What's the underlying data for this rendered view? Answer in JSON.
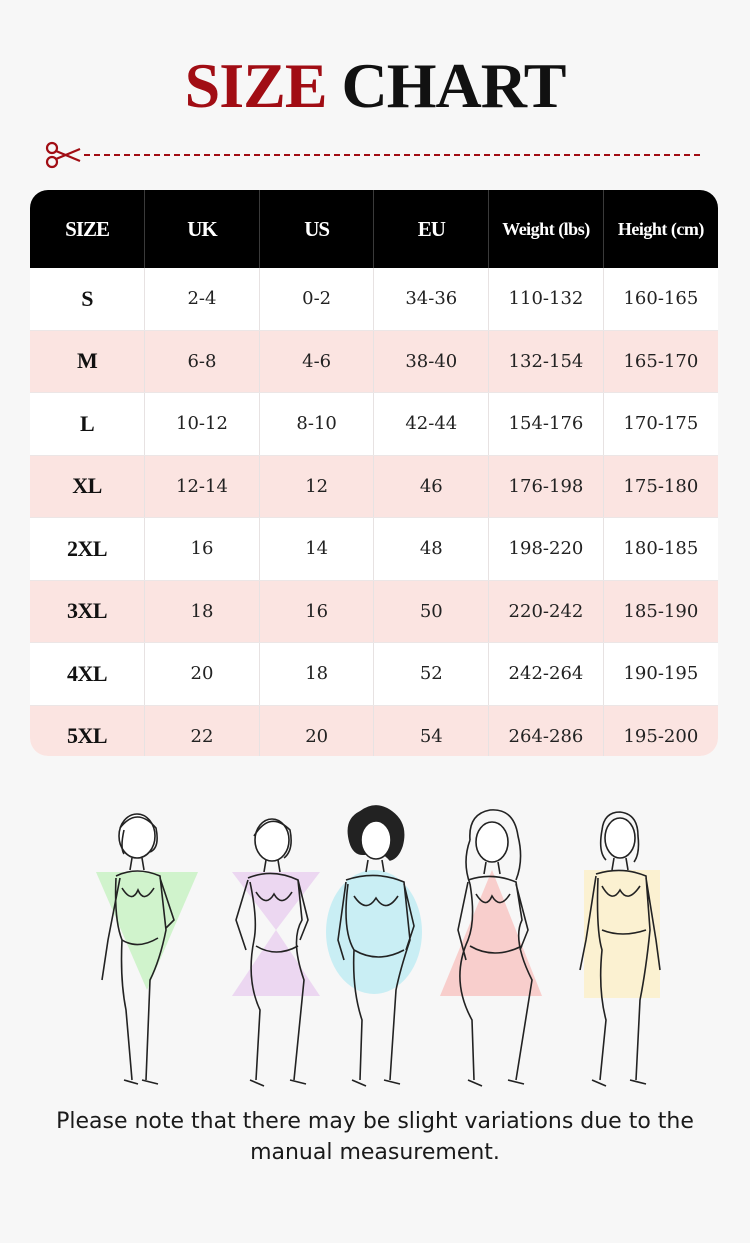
{
  "title": {
    "part1": "SIZE",
    "part2": "CHART"
  },
  "colors": {
    "accent": "#a10d14",
    "header_bg": "#000000",
    "row_alt": "#fbe4e1",
    "row_plain": "#ffffff"
  },
  "icons": {
    "cut": "scissors-icon"
  },
  "table": {
    "headers": [
      "SIZE",
      "UK",
      "US",
      "EU",
      "Weight (lbs)",
      "Height (cm)"
    ],
    "rows": [
      [
        "S",
        "2-4",
        "0-2",
        "34-36",
        "110-132",
        "160-165"
      ],
      [
        "M",
        "6-8",
        "4-6",
        "38-40",
        "132-154",
        "165-170"
      ],
      [
        "L",
        "10-12",
        "8-10",
        "42-44",
        "154-176",
        "170-175"
      ],
      [
        "XL",
        "12-14",
        "12",
        "46",
        "176-198",
        "175-180"
      ],
      [
        "2XL",
        "16",
        "14",
        "48",
        "198-220",
        "180-185"
      ],
      [
        "3XL",
        "18",
        "16",
        "50",
        "220-242",
        "185-190"
      ],
      [
        "4XL",
        "20",
        "18",
        "52",
        "242-264",
        "190-195"
      ],
      [
        "5XL",
        "22",
        "20",
        "54",
        "264-286",
        "195-200"
      ]
    ]
  },
  "body_shapes": [
    "inverted-triangle",
    "hourglass",
    "apple",
    "pear",
    "rectangle"
  ],
  "note": "Please note that there may be slight variations due to the manual measurement."
}
